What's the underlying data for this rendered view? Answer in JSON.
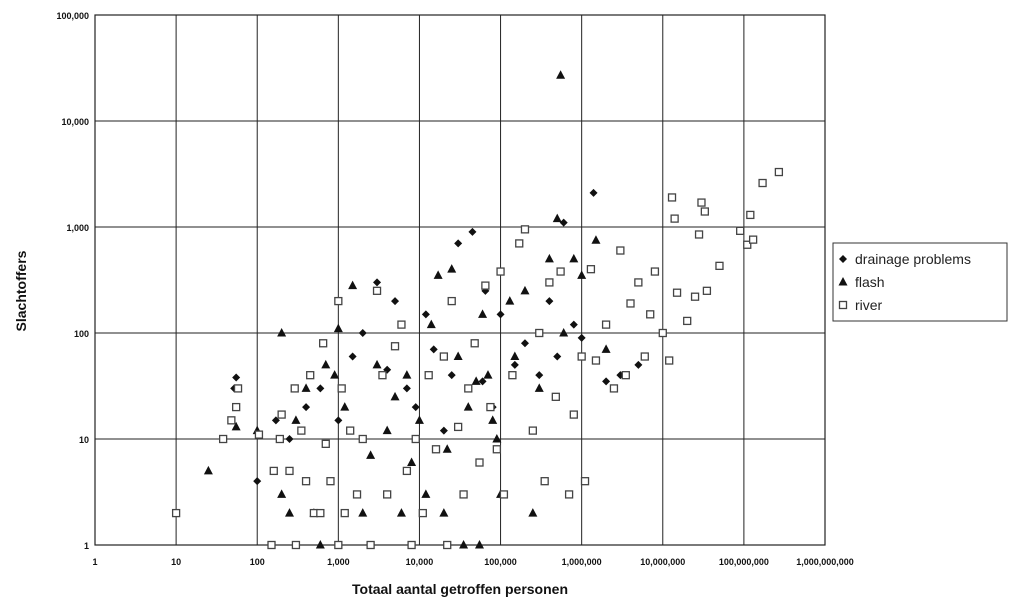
{
  "chart_data": {
    "type": "scatter",
    "title": "",
    "xlabel": "Totaal aantal getroffen personen",
    "ylabel": "Slachtoffers",
    "xscale": "log",
    "yscale": "log",
    "xlim": [
      1,
      1000000000
    ],
    "ylim": [
      1,
      100000
    ],
    "grid": true,
    "legend_position": "right",
    "x_tick_labels": [
      "1",
      "10",
      "100",
      "1,000",
      "10,000",
      "100,000",
      "1,000,000",
      "10,000,000",
      "100,000,000",
      "1,000,000,000"
    ],
    "y_tick_labels": [
      "1",
      "10",
      "100",
      "1,000",
      "10,000",
      "100,000"
    ],
    "series": [
      {
        "name": "drainage problems",
        "marker": "diamond",
        "color": "#111111",
        "points": [
          [
            55,
            38
          ],
          [
            52,
            30
          ],
          [
            100,
            4
          ],
          [
            170,
            15
          ],
          [
            250,
            10
          ],
          [
            400,
            20
          ],
          [
            600,
            30
          ],
          [
            1000,
            15
          ],
          [
            1500,
            60
          ],
          [
            2000,
            100
          ],
          [
            3000,
            300
          ],
          [
            4000,
            45
          ],
          [
            5000,
            200
          ],
          [
            7000,
            30
          ],
          [
            9000,
            20
          ],
          [
            12000,
            150
          ],
          [
            15000,
            70
          ],
          [
            20000,
            12
          ],
          [
            25000,
            40
          ],
          [
            30000,
            700
          ],
          [
            45000,
            900
          ],
          [
            60000,
            35
          ],
          [
            65000,
            250
          ],
          [
            80000,
            20
          ],
          [
            100000,
            150
          ],
          [
            150000,
            50
          ],
          [
            200000,
            80
          ],
          [
            300000,
            40
          ],
          [
            400000,
            200
          ],
          [
            500000,
            60
          ],
          [
            600000,
            1100
          ],
          [
            800000,
            120
          ],
          [
            1000000,
            90
          ],
          [
            1400000,
            2100
          ],
          [
            2000000,
            35
          ],
          [
            3000000,
            40
          ],
          [
            5000000,
            50
          ]
        ]
      },
      {
        "name": "flash",
        "marker": "triangle",
        "color": "#111111",
        "points": [
          [
            25,
            5
          ],
          [
            55,
            13
          ],
          [
            100,
            12
          ],
          [
            200,
            100
          ],
          [
            200,
            3
          ],
          [
            250,
            2
          ],
          [
            300,
            15
          ],
          [
            400,
            30
          ],
          [
            500,
            2
          ],
          [
            600,
            1
          ],
          [
            700,
            50
          ],
          [
            900,
            40
          ],
          [
            1000,
            110
          ],
          [
            1200,
            20
          ],
          [
            1500,
            280
          ],
          [
            2000,
            2
          ],
          [
            2500,
            7
          ],
          [
            3000,
            50
          ],
          [
            4000,
            12
          ],
          [
            5000,
            25
          ],
          [
            6000,
            2
          ],
          [
            7000,
            40
          ],
          [
            8000,
            6
          ],
          [
            10000,
            15
          ],
          [
            12000,
            3
          ],
          [
            14000,
            120
          ],
          [
            17000,
            350
          ],
          [
            20000,
            2
          ],
          [
            22000,
            8
          ],
          [
            25000,
            400
          ],
          [
            30000,
            60
          ],
          [
            35000,
            1
          ],
          [
            40000,
            20
          ],
          [
            50000,
            35
          ],
          [
            55000,
            1
          ],
          [
            60000,
            150
          ],
          [
            70000,
            40
          ],
          [
            80000,
            15
          ],
          [
            90000,
            10
          ],
          [
            100000,
            3
          ],
          [
            130000,
            200
          ],
          [
            150000,
            60
          ],
          [
            200000,
            250
          ],
          [
            250000,
            2
          ],
          [
            300000,
            30
          ],
          [
            400000,
            500
          ],
          [
            500000,
            1200
          ],
          [
            550000,
            27000
          ],
          [
            600000,
            100
          ],
          [
            800000,
            500
          ],
          [
            1000000,
            350
          ],
          [
            1500000,
            750
          ],
          [
            2000000,
            70
          ]
        ]
      },
      {
        "name": "river",
        "marker": "square-open",
        "color": "#444444",
        "points": [
          [
            10,
            2
          ],
          [
            38,
            10
          ],
          [
            48,
            15
          ],
          [
            55,
            20
          ],
          [
            58,
            30
          ],
          [
            105,
            11
          ],
          [
            150,
            1
          ],
          [
            160,
            5
          ],
          [
            190,
            10
          ],
          [
            200,
            17
          ],
          [
            250,
            5
          ],
          [
            290,
            30
          ],
          [
            300,
            1
          ],
          [
            350,
            12
          ],
          [
            400,
            4
          ],
          [
            450,
            40
          ],
          [
            500,
            2
          ],
          [
            600,
            2
          ],
          [
            650,
            80
          ],
          [
            700,
            9
          ],
          [
            800,
            4
          ],
          [
            1000,
            200
          ],
          [
            1000,
            1
          ],
          [
            1100,
            30
          ],
          [
            1200,
            2
          ],
          [
            1400,
            12
          ],
          [
            1700,
            3
          ],
          [
            2000,
            10
          ],
          [
            2500,
            1
          ],
          [
            3000,
            250
          ],
          [
            3500,
            40
          ],
          [
            4000,
            3
          ],
          [
            5000,
            75
          ],
          [
            6000,
            120
          ],
          [
            7000,
            5
          ],
          [
            8000,
            1
          ],
          [
            9000,
            10
          ],
          [
            11000,
            2
          ],
          [
            13000,
            40
          ],
          [
            16000,
            8
          ],
          [
            20000,
            60
          ],
          [
            22000,
            1
          ],
          [
            25000,
            200
          ],
          [
            30000,
            13
          ],
          [
            35000,
            3
          ],
          [
            40000,
            30
          ],
          [
            48000,
            80
          ],
          [
            55000,
            6
          ],
          [
            65000,
            280
          ],
          [
            75000,
            20
          ],
          [
            90000,
            8
          ],
          [
            100000,
            380
          ],
          [
            110000,
            3
          ],
          [
            140000,
            40
          ],
          [
            170000,
            700
          ],
          [
            200000,
            950
          ],
          [
            250000,
            12
          ],
          [
            300000,
            100
          ],
          [
            350000,
            4
          ],
          [
            400000,
            300
          ],
          [
            480000,
            25
          ],
          [
            550000,
            380
          ],
          [
            700000,
            3
          ],
          [
            800000,
            17
          ],
          [
            1000000,
            60
          ],
          [
            1100000,
            4
          ],
          [
            1300000,
            400
          ],
          [
            1500000,
            55
          ],
          [
            2000000,
            120
          ],
          [
            2500000,
            30
          ],
          [
            3000000,
            600
          ],
          [
            3500000,
            40
          ],
          [
            4000000,
            190
          ],
          [
            5000000,
            300
          ],
          [
            6000000,
            60
          ],
          [
            7000000,
            150
          ],
          [
            8000000,
            380
          ],
          [
            10000000,
            100
          ],
          [
            12000000,
            55
          ],
          [
            13000000,
            1900
          ],
          [
            14000000,
            1200
          ],
          [
            15000000,
            240
          ],
          [
            20000000,
            130
          ],
          [
            25000000,
            220
          ],
          [
            28000000,
            850
          ],
          [
            30000000,
            1700
          ],
          [
            33000000,
            1400
          ],
          [
            35000000,
            250
          ],
          [
            50000000,
            430
          ],
          [
            90000000,
            920
          ],
          [
            110000000,
            680
          ],
          [
            120000000,
            1300
          ],
          [
            130000000,
            760
          ],
          [
            170000000,
            2600
          ],
          [
            270000000,
            3300
          ]
        ]
      }
    ]
  }
}
